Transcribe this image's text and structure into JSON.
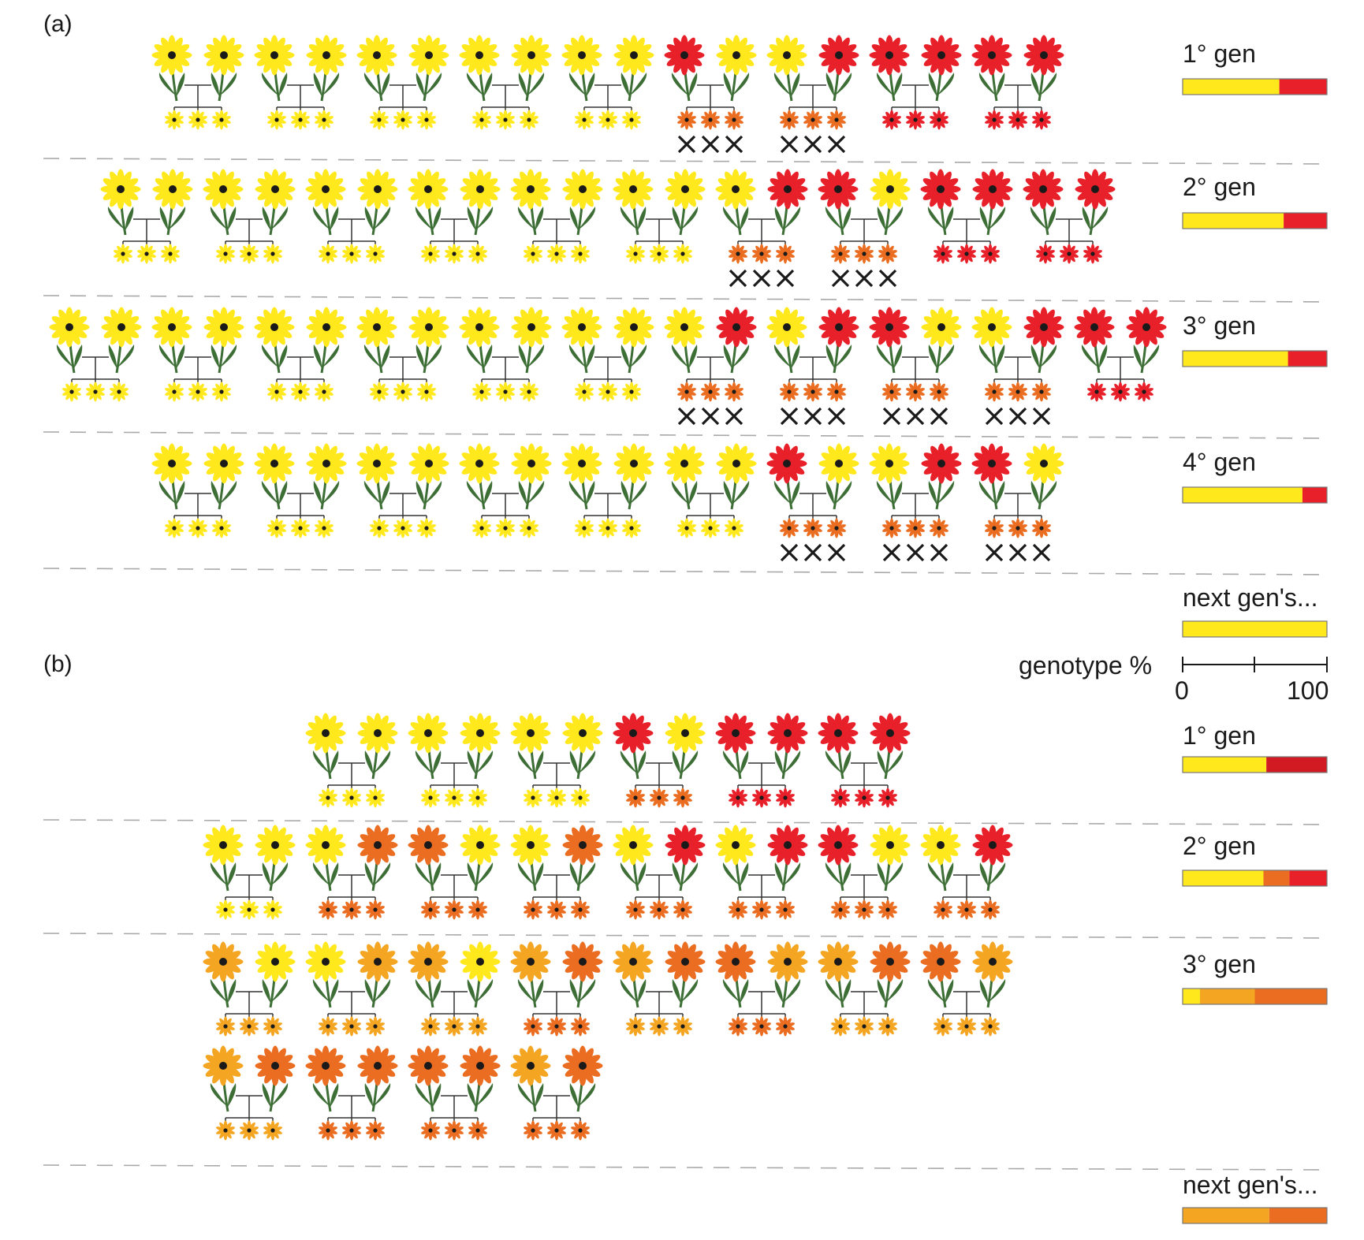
{
  "colors": {
    "Y": "#ffe81c",
    "R": "#e8202a",
    "O": "#ea6d21",
    "L": "#f4a623",
    "D": "#d11a22",
    "stem": "#3d6e35",
    "center": "#1a1a1a",
    "line": "#333333",
    "cross": "#1a1a1a",
    "dash": "#a8a8a8"
  },
  "panel_a": {
    "label": "(a)",
    "generations": [
      {
        "label": "1° gen",
        "pairs": [
          [
            "Y",
            "Y",
            "Y",
            false
          ],
          [
            "Y",
            "Y",
            "Y",
            false
          ],
          [
            "Y",
            "Y",
            "Y",
            false
          ],
          [
            "Y",
            "Y",
            "Y",
            false
          ],
          [
            "Y",
            "Y",
            "Y",
            false
          ],
          [
            "R",
            "Y",
            "O",
            true
          ],
          [
            "Y",
            "R",
            "O",
            true
          ],
          [
            "R",
            "R",
            "R",
            false
          ],
          [
            "R",
            "R",
            "R",
            false
          ]
        ],
        "bar": [
          {
            "color": "Y",
            "pct": 67
          },
          {
            "color": "R",
            "pct": 33
          }
        ]
      },
      {
        "label": "2° gen",
        "pairs": [
          [
            "Y",
            "Y",
            "Y",
            false
          ],
          [
            "Y",
            "Y",
            "Y",
            false
          ],
          [
            "Y",
            "Y",
            "Y",
            false
          ],
          [
            "Y",
            "Y",
            "Y",
            false
          ],
          [
            "Y",
            "Y",
            "Y",
            false
          ],
          [
            "Y",
            "Y",
            "Y",
            false
          ],
          [
            "Y",
            "R",
            "O",
            true
          ],
          [
            "R",
            "Y",
            "O",
            true
          ],
          [
            "R",
            "R",
            "R",
            false
          ],
          [
            "R",
            "R",
            "R",
            false
          ]
        ],
        "bar": [
          {
            "color": "Y",
            "pct": 70
          },
          {
            "color": "R",
            "pct": 30
          }
        ]
      },
      {
        "label": "3° gen",
        "pairs": [
          [
            "Y",
            "Y",
            "Y",
            false
          ],
          [
            "Y",
            "Y",
            "Y",
            false
          ],
          [
            "Y",
            "Y",
            "Y",
            false
          ],
          [
            "Y",
            "Y",
            "Y",
            false
          ],
          [
            "Y",
            "Y",
            "Y",
            false
          ],
          [
            "Y",
            "Y",
            "Y",
            false
          ],
          [
            "Y",
            "R",
            "O",
            true
          ],
          [
            "Y",
            "R",
            "O",
            true
          ],
          [
            "R",
            "Y",
            "O",
            true
          ],
          [
            "Y",
            "R",
            "O",
            true
          ],
          [
            "R",
            "R",
            "R",
            false
          ]
        ],
        "bar": [
          {
            "color": "Y",
            "pct": 73
          },
          {
            "color": "R",
            "pct": 27
          }
        ]
      },
      {
        "label": "4° gen",
        "pairs": [
          [
            "Y",
            "Y",
            "Y",
            false
          ],
          [
            "Y",
            "Y",
            "Y",
            false
          ],
          [
            "Y",
            "Y",
            "Y",
            false
          ],
          [
            "Y",
            "Y",
            "Y",
            false
          ],
          [
            "Y",
            "Y",
            "Y",
            false
          ],
          [
            "Y",
            "Y",
            "Y",
            false
          ],
          [
            "R",
            "Y",
            "O",
            true
          ],
          [
            "Y",
            "R",
            "O",
            true
          ],
          [
            "R",
            "Y",
            "O",
            true
          ]
        ],
        "bar": [
          {
            "color": "Y",
            "pct": 83
          },
          {
            "color": "R",
            "pct": 17
          }
        ]
      }
    ],
    "next": {
      "label": "next gen's...",
      "bar": [
        {
          "color": "Y",
          "pct": 100
        }
      ]
    }
  },
  "scale": {
    "label": "genotype %",
    "min": "0",
    "max": "100"
  },
  "panel_b": {
    "label": "(b)",
    "generations": [
      {
        "label": "1° gen",
        "pairs": [
          [
            "Y",
            "Y",
            "Y",
            false
          ],
          [
            "Y",
            "Y",
            "Y",
            false
          ],
          [
            "Y",
            "Y",
            "Y",
            false
          ],
          [
            "R",
            "Y",
            "O",
            false
          ],
          [
            "R",
            "R",
            "R",
            false
          ],
          [
            "R",
            "R",
            "R",
            false
          ]
        ],
        "bar": [
          {
            "color": "Y",
            "pct": 58
          },
          {
            "color": "D",
            "pct": 42
          }
        ]
      },
      {
        "label": "2° gen",
        "pairs": [
          [
            "Y",
            "Y",
            "Y",
            false
          ],
          [
            "Y",
            "O",
            "O",
            false
          ],
          [
            "O",
            "Y",
            "O",
            false
          ],
          [
            "Y",
            "O",
            "O",
            false
          ],
          [
            "Y",
            "R",
            "O",
            false
          ],
          [
            "Y",
            "R",
            "O",
            false
          ],
          [
            "R",
            "Y",
            "O",
            false
          ],
          [
            "Y",
            "R",
            "O",
            false
          ]
        ],
        "bar": [
          {
            "color": "Y",
            "pct": 56
          },
          {
            "color": "O",
            "pct": 18
          },
          {
            "color": "R",
            "pct": 26
          }
        ]
      },
      {
        "label": "3° gen",
        "pairs": [
          [
            "L",
            "Y",
            "L",
            false
          ],
          [
            "Y",
            "L",
            "L",
            false
          ],
          [
            "L",
            "Y",
            "L",
            false
          ],
          [
            "L",
            "O",
            "O",
            false
          ],
          [
            "L",
            "O",
            "L",
            false
          ],
          [
            "O",
            "L",
            "O",
            false
          ],
          [
            "L",
            "O",
            "L",
            false
          ],
          [
            "O",
            "L",
            "L",
            false
          ],
          [
            "L",
            "O",
            "L",
            false
          ],
          [
            "O",
            "O",
            "O",
            false
          ],
          [
            "O",
            "O",
            "O",
            false
          ],
          [
            "L",
            "O",
            "O",
            false
          ]
        ],
        "bar": [
          {
            "color": "Y",
            "pct": 12
          },
          {
            "color": "L",
            "pct": 38
          },
          {
            "color": "O",
            "pct": 50
          }
        ]
      }
    ],
    "next": {
      "label": "next gen's...",
      "bar": [
        {
          "color": "L",
          "pct": 60
        },
        {
          "color": "O",
          "pct": 40
        }
      ]
    }
  }
}
